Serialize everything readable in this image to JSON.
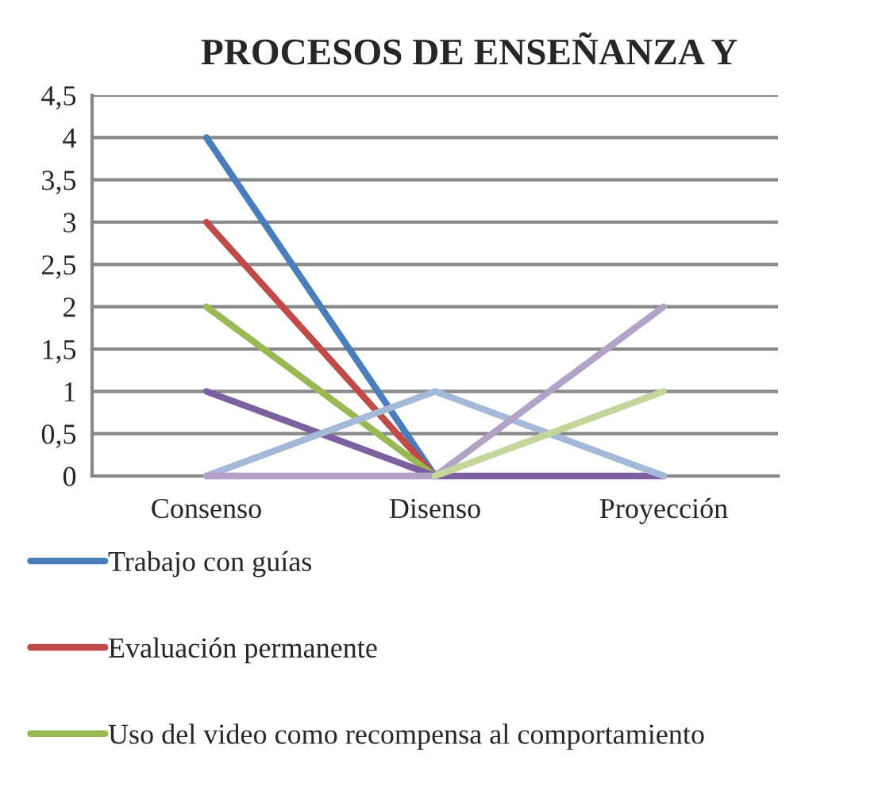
{
  "chart_data": {
    "type": "line",
    "title": "PROCESOS DE ENSEÑANZA Y",
    "categories": [
      "Consenso",
      "Disenso",
      "Proyección"
    ],
    "series": [
      {
        "name": "Trabajo con guías",
        "color": "#4a7ebb",
        "values": [
          4,
          0,
          null
        ]
      },
      {
        "name": "Evaluación permanente",
        "color": "#be4b48",
        "values": [
          3,
          0,
          null
        ]
      },
      {
        "name": "Uso del video como recompensa al comportamiento",
        "color": "#98b954",
        "values": [
          2,
          0,
          null
        ]
      },
      {
        "color": "#7d60a0",
        "values": [
          1,
          0,
          0
        ]
      },
      {
        "color": "#a4b8d8",
        "values": [
          0,
          1,
          0
        ]
      },
      {
        "color": "#b3a2c7",
        "values": [
          0,
          0,
          2
        ]
      },
      {
        "color": "#c3d69b",
        "values": [
          null,
          0,
          1
        ]
      }
    ],
    "ylim": [
      0,
      4.5
    ],
    "yticks": [
      {
        "value": 0,
        "label": "0"
      },
      {
        "value": 0.5,
        "label": "0,5"
      },
      {
        "value": 1,
        "label": "1"
      },
      {
        "value": 1.5,
        "label": "1,5"
      },
      {
        "value": 2,
        "label": "2"
      },
      {
        "value": 2.5,
        "label": "2,5"
      },
      {
        "value": 3,
        "label": "3"
      },
      {
        "value": 3.5,
        "label": "3,5"
      },
      {
        "value": 4,
        "label": "4"
      },
      {
        "value": 4.5,
        "label": "4,5"
      }
    ],
    "grid": "y",
    "legend": "bottom",
    "marker": "none",
    "line_style": "solid"
  }
}
